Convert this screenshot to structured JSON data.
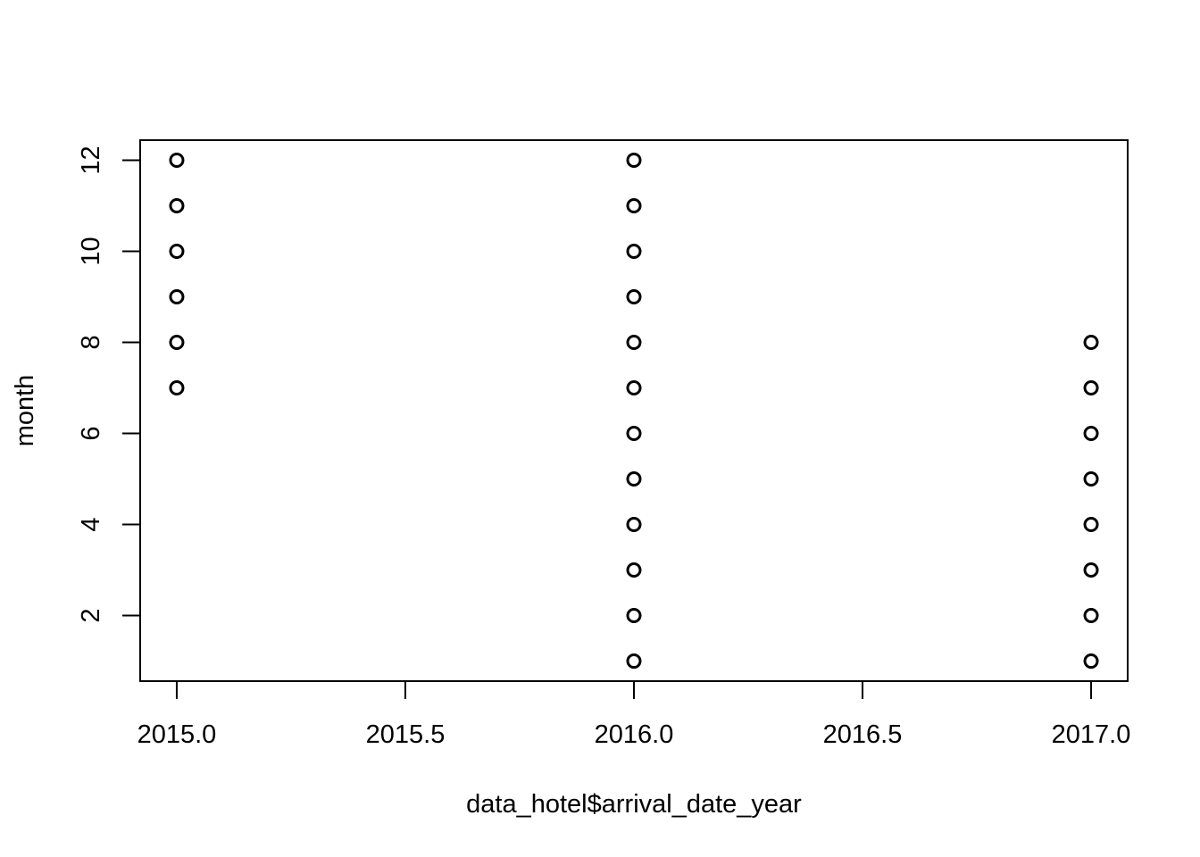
{
  "chart_data": {
    "type": "scatter",
    "title": "",
    "xlabel": "data_hotel$arrival_date_year",
    "ylabel": "month",
    "xlim": [
      2014.92,
      2017.08
    ],
    "ylim": [
      0.56,
      12.44
    ],
    "x_ticks": [
      2015.0,
      2015.5,
      2016.0,
      2016.5,
      2017.0
    ],
    "x_tick_labels": [
      "2015.0",
      "2015.5",
      "2016.0",
      "2016.5",
      "2017.0"
    ],
    "y_ticks": [
      2,
      4,
      6,
      8,
      10,
      12
    ],
    "y_tick_labels": [
      "2",
      "4",
      "6",
      "8",
      "10",
      "12"
    ],
    "grid": false,
    "legend": "none",
    "marker": "open-circle",
    "series": [
      {
        "x": [
          2015,
          2015,
          2015,
          2015,
          2015,
          2015,
          2016,
          2016,
          2016,
          2016,
          2016,
          2016,
          2016,
          2016,
          2016,
          2016,
          2016,
          2016,
          2017,
          2017,
          2017,
          2017,
          2017,
          2017,
          2017,
          2017
        ],
        "y": [
          7,
          8,
          9,
          10,
          11,
          12,
          1,
          2,
          3,
          4,
          5,
          6,
          7,
          8,
          9,
          10,
          11,
          12,
          1,
          2,
          3,
          4,
          5,
          6,
          7,
          8
        ]
      }
    ]
  }
}
